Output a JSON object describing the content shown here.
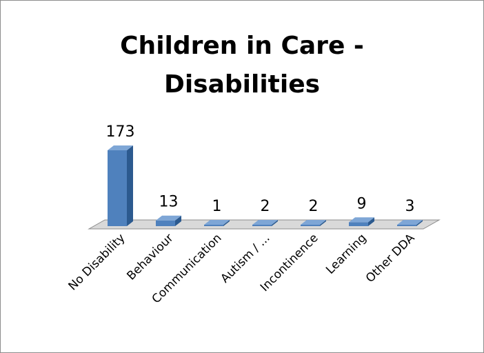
{
  "chart_data": {
    "type": "bar",
    "title_lines": [
      "Children in Care -",
      "Disabilities"
    ],
    "categories": [
      "No Disability",
      "Behaviour",
      "Communication",
      "Autism / ...",
      "Incontinence",
      "Learning",
      "Other DDA"
    ],
    "values": [
      173,
      13,
      1,
      2,
      2,
      9,
      3
    ],
    "ylim": [
      0,
      173
    ],
    "grid": false,
    "legend": "none",
    "style": "3d-column",
    "colors": {
      "bar_front": "#4f81bd",
      "bar_side": "#2c5a8f",
      "bar_top": "#7ea6d6",
      "floor": "#d9d9d9"
    }
  }
}
